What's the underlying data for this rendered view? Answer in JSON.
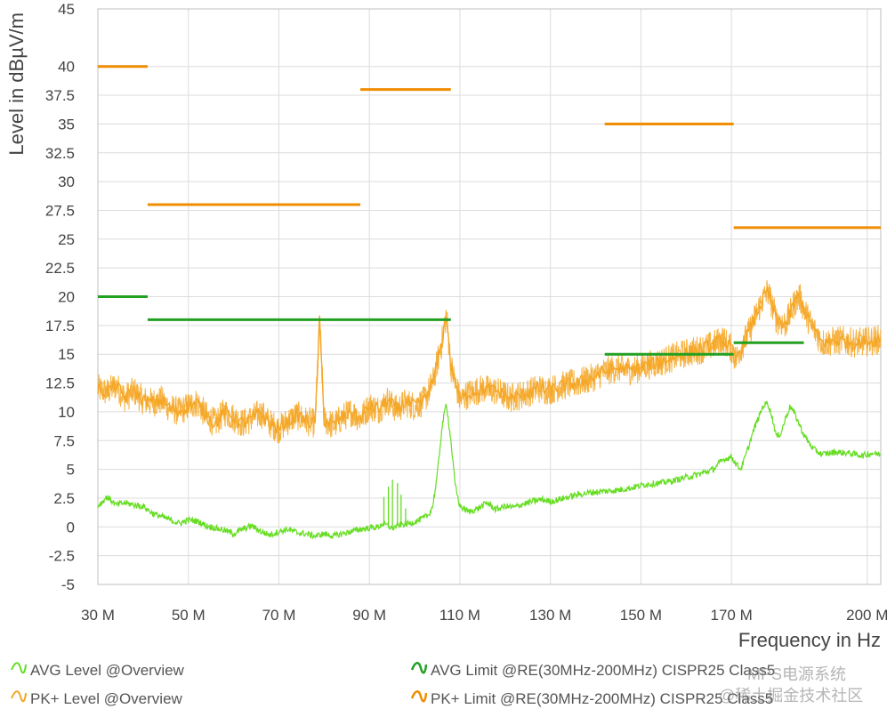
{
  "chart_data": {
    "type": "line",
    "xlabel": "Frequency in Hz",
    "ylabel": "Level in  dBµV/m",
    "xlim": [
      30,
      200
    ],
    "ylim": [
      -5,
      45
    ],
    "x_ticks": [
      30,
      50,
      70,
      90,
      110,
      130,
      150,
      170,
      200
    ],
    "x_tick_labels": [
      "30 M",
      "50 M",
      "70 M",
      "90 M",
      "110 M",
      "130 M",
      "150 M",
      "170 M",
      "200 M"
    ],
    "y_ticks": [
      -5,
      -2.5,
      0,
      2.5,
      5,
      7.5,
      10,
      12.5,
      15,
      17.5,
      20,
      22.5,
      25,
      27.5,
      30,
      32.5,
      35,
      37.5,
      40,
      45
    ],
    "y_tick_labels": [
      "-5",
      "-2.5",
      "0",
      "2.5",
      "5",
      "7.5",
      "10",
      "12.5",
      "15",
      "17.5",
      "20",
      "22.5",
      "25",
      "27.5",
      "30",
      "32.5",
      "35",
      "37.5",
      "40",
      "45"
    ],
    "grid": true,
    "colors": {
      "pk_level": "#f5a623",
      "avg_level": "#66dd22",
      "pk_limit": "#f08c00",
      "avg_limit": "#22a022"
    },
    "series": [
      {
        "name": "PK+ Level @Overview",
        "key": "pk_level",
        "points": [
          [
            30,
            12
          ],
          [
            32,
            11.7
          ],
          [
            34,
            12.3
          ],
          [
            36,
            11.2
          ],
          [
            38,
            11.8
          ],
          [
            40,
            11.0
          ],
          [
            42,
            10.8
          ],
          [
            44,
            11.0
          ],
          [
            46,
            10.3
          ],
          [
            48,
            10.0
          ],
          [
            50,
            10.5
          ],
          [
            52,
            10.8
          ],
          [
            54,
            9.6
          ],
          [
            56,
            9.0
          ],
          [
            58,
            10.0
          ],
          [
            60,
            9.5
          ],
          [
            62,
            9.0
          ],
          [
            64,
            9.4
          ],
          [
            66,
            9.9
          ],
          [
            68,
            9.0
          ],
          [
            70,
            8.5
          ],
          [
            72,
            9.2
          ],
          [
            74,
            9.7
          ],
          [
            76,
            9.2
          ],
          [
            78,
            9.0
          ],
          [
            79,
            17.8
          ],
          [
            80,
            9.3
          ],
          [
            82,
            8.8
          ],
          [
            84,
            9.5
          ],
          [
            86,
            10.0
          ],
          [
            88,
            9.4
          ],
          [
            90,
            10.5
          ],
          [
            92,
            10.2
          ],
          [
            94,
            11.0
          ],
          [
            96,
            10.2
          ],
          [
            98,
            10.8
          ],
          [
            100,
            10.5
          ],
          [
            102,
            10.9
          ],
          [
            104,
            12.5
          ],
          [
            106,
            16.0
          ],
          [
            107,
            18.5
          ],
          [
            108,
            14.0
          ],
          [
            110,
            11.0
          ],
          [
            112,
            11.6
          ],
          [
            115,
            12.0
          ],
          [
            118,
            11.8
          ],
          [
            121,
            11.2
          ],
          [
            124,
            11.5
          ],
          [
            127,
            12.0
          ],
          [
            130,
            11.9
          ],
          [
            133,
            12.3
          ],
          [
            136,
            12.5
          ],
          [
            139,
            12.9
          ],
          [
            142,
            13.5
          ],
          [
            145,
            13.8
          ],
          [
            148,
            13.6
          ],
          [
            151,
            14.0
          ],
          [
            154,
            14.3
          ],
          [
            157,
            14.7
          ],
          [
            160,
            15.1
          ],
          [
            163,
            15.4
          ],
          [
            166,
            15.8
          ],
          [
            168,
            16.3
          ],
          [
            170,
            15.5
          ],
          [
            171,
            14.5
          ],
          [
            172,
            15.5
          ],
          [
            174,
            17.0
          ],
          [
            176,
            19.0
          ],
          [
            178,
            20.5
          ],
          [
            180,
            18.0
          ],
          [
            182,
            17.6
          ],
          [
            184,
            19.5
          ],
          [
            185,
            20.0
          ],
          [
            187,
            18.0
          ],
          [
            190,
            16.0
          ],
          [
            194,
            16.2
          ],
          [
            197,
            16.0
          ],
          [
            200,
            16.1
          ],
          [
            203,
            16.3
          ]
        ]
      },
      {
        "name": "AVG Level @Overview",
        "key": "avg_level",
        "points": [
          [
            30,
            1.8
          ],
          [
            31,
            2.2
          ],
          [
            32,
            2.6
          ],
          [
            33,
            2.3
          ],
          [
            34,
            1.9
          ],
          [
            36,
            2.1
          ],
          [
            38,
            1.9
          ],
          [
            40,
            1.8
          ],
          [
            42,
            1.2
          ],
          [
            44,
            0.9
          ],
          [
            46,
            0.6
          ],
          [
            48,
            0.3
          ],
          [
            50,
            0.6
          ],
          [
            52,
            0.5
          ],
          [
            54,
            0.1
          ],
          [
            56,
            -0.1
          ],
          [
            58,
            -0.3
          ],
          [
            60,
            -0.6
          ],
          [
            62,
            -0.2
          ],
          [
            64,
            0.1
          ],
          [
            66,
            -0.4
          ],
          [
            68,
            -0.7
          ],
          [
            70,
            -0.4
          ],
          [
            72,
            -0.2
          ],
          [
            74,
            -0.5
          ],
          [
            76,
            -0.6
          ],
          [
            78,
            -0.8
          ],
          [
            80,
            -0.6
          ],
          [
            82,
            -0.8
          ],
          [
            84,
            -0.6
          ],
          [
            86,
            -0.4
          ],
          [
            88,
            -0.2
          ],
          [
            90,
            -0.1
          ],
          [
            92,
            0.0
          ],
          [
            93,
            0.3
          ],
          [
            95,
            -0.1
          ],
          [
            97,
            0.2
          ],
          [
            99,
            0.3
          ],
          [
            101,
            0.6
          ],
          [
            103,
            1.0
          ],
          [
            104,
            1.8
          ],
          [
            105,
            4.5
          ],
          [
            106,
            8.5
          ],
          [
            107,
            10.8
          ],
          [
            108,
            7.5
          ],
          [
            109,
            3.5
          ],
          [
            110,
            1.8
          ],
          [
            112,
            1.3
          ],
          [
            114,
            1.6
          ],
          [
            116,
            2.1
          ],
          [
            118,
            1.5
          ],
          [
            120,
            1.8
          ],
          [
            122,
            1.7
          ],
          [
            124,
            2.0
          ],
          [
            126,
            2.2
          ],
          [
            128,
            2.4
          ],
          [
            130,
            2.2
          ],
          [
            133,
            2.5
          ],
          [
            136,
            2.8
          ],
          [
            139,
            3.0
          ],
          [
            142,
            3.1
          ],
          [
            145,
            3.2
          ],
          [
            148,
            3.4
          ],
          [
            151,
            3.7
          ],
          [
            154,
            3.8
          ],
          [
            157,
            4.0
          ],
          [
            160,
            4.3
          ],
          [
            163,
            4.6
          ],
          [
            166,
            5.0
          ],
          [
            168,
            5.8
          ],
          [
            170,
            6.1
          ],
          [
            171,
            5.5
          ],
          [
            172,
            5.0
          ],
          [
            173,
            6.0
          ],
          [
            175,
            8.5
          ],
          [
            177,
            10.5
          ],
          [
            178,
            10.8
          ],
          [
            179,
            9.5
          ],
          [
            180,
            7.8
          ],
          [
            181,
            8.2
          ],
          [
            182,
            9.5
          ],
          [
            183,
            10.5
          ],
          [
            184,
            9.8
          ],
          [
            186,
            8.0
          ],
          [
            188,
            6.8
          ],
          [
            190,
            6.3
          ],
          [
            193,
            6.5
          ],
          [
            196,
            6.4
          ],
          [
            199,
            6.2
          ],
          [
            201,
            6.4
          ],
          [
            203,
            6.3
          ]
        ]
      },
      {
        "name": "PK+ Limit @RE(30MHz-200MHz) CISPR25 Class5",
        "key": "pk_limit",
        "segments": [
          [
            30,
            41,
            40
          ],
          [
            41,
            88,
            28
          ],
          [
            88,
            108,
            38
          ],
          [
            142,
            170.5,
            35
          ],
          [
            170.5,
            203,
            26
          ]
        ]
      },
      {
        "name": "AVG Limit @RE(30MHz-200MHz) CISPR25 Class5",
        "key": "avg_limit",
        "segments": [
          [
            30,
            41,
            20
          ],
          [
            41,
            108,
            18
          ],
          [
            142,
            170.5,
            15
          ],
          [
            170.5,
            186,
            16
          ]
        ]
      }
    ],
    "legend": [
      {
        "label": "AVG Level @Overview",
        "key": "avg_level",
        "position": "bottom-left"
      },
      {
        "label": "PK+ Level @Overview",
        "key": "pk_level",
        "position": "bottom-left"
      },
      {
        "label": "AVG Limit @RE(30MHz-200MHz) CISPR25 Class5",
        "key": "avg_limit",
        "position": "bottom-right"
      },
      {
        "label": "PK+ Limit @RE(30MHz-200MHz) CISPR25 Class5",
        "key": "pk_limit",
        "position": "bottom-right"
      }
    ]
  },
  "watermark": {
    "line1": "MPS电源系统",
    "line2": "@稀土掘金技术社区"
  }
}
